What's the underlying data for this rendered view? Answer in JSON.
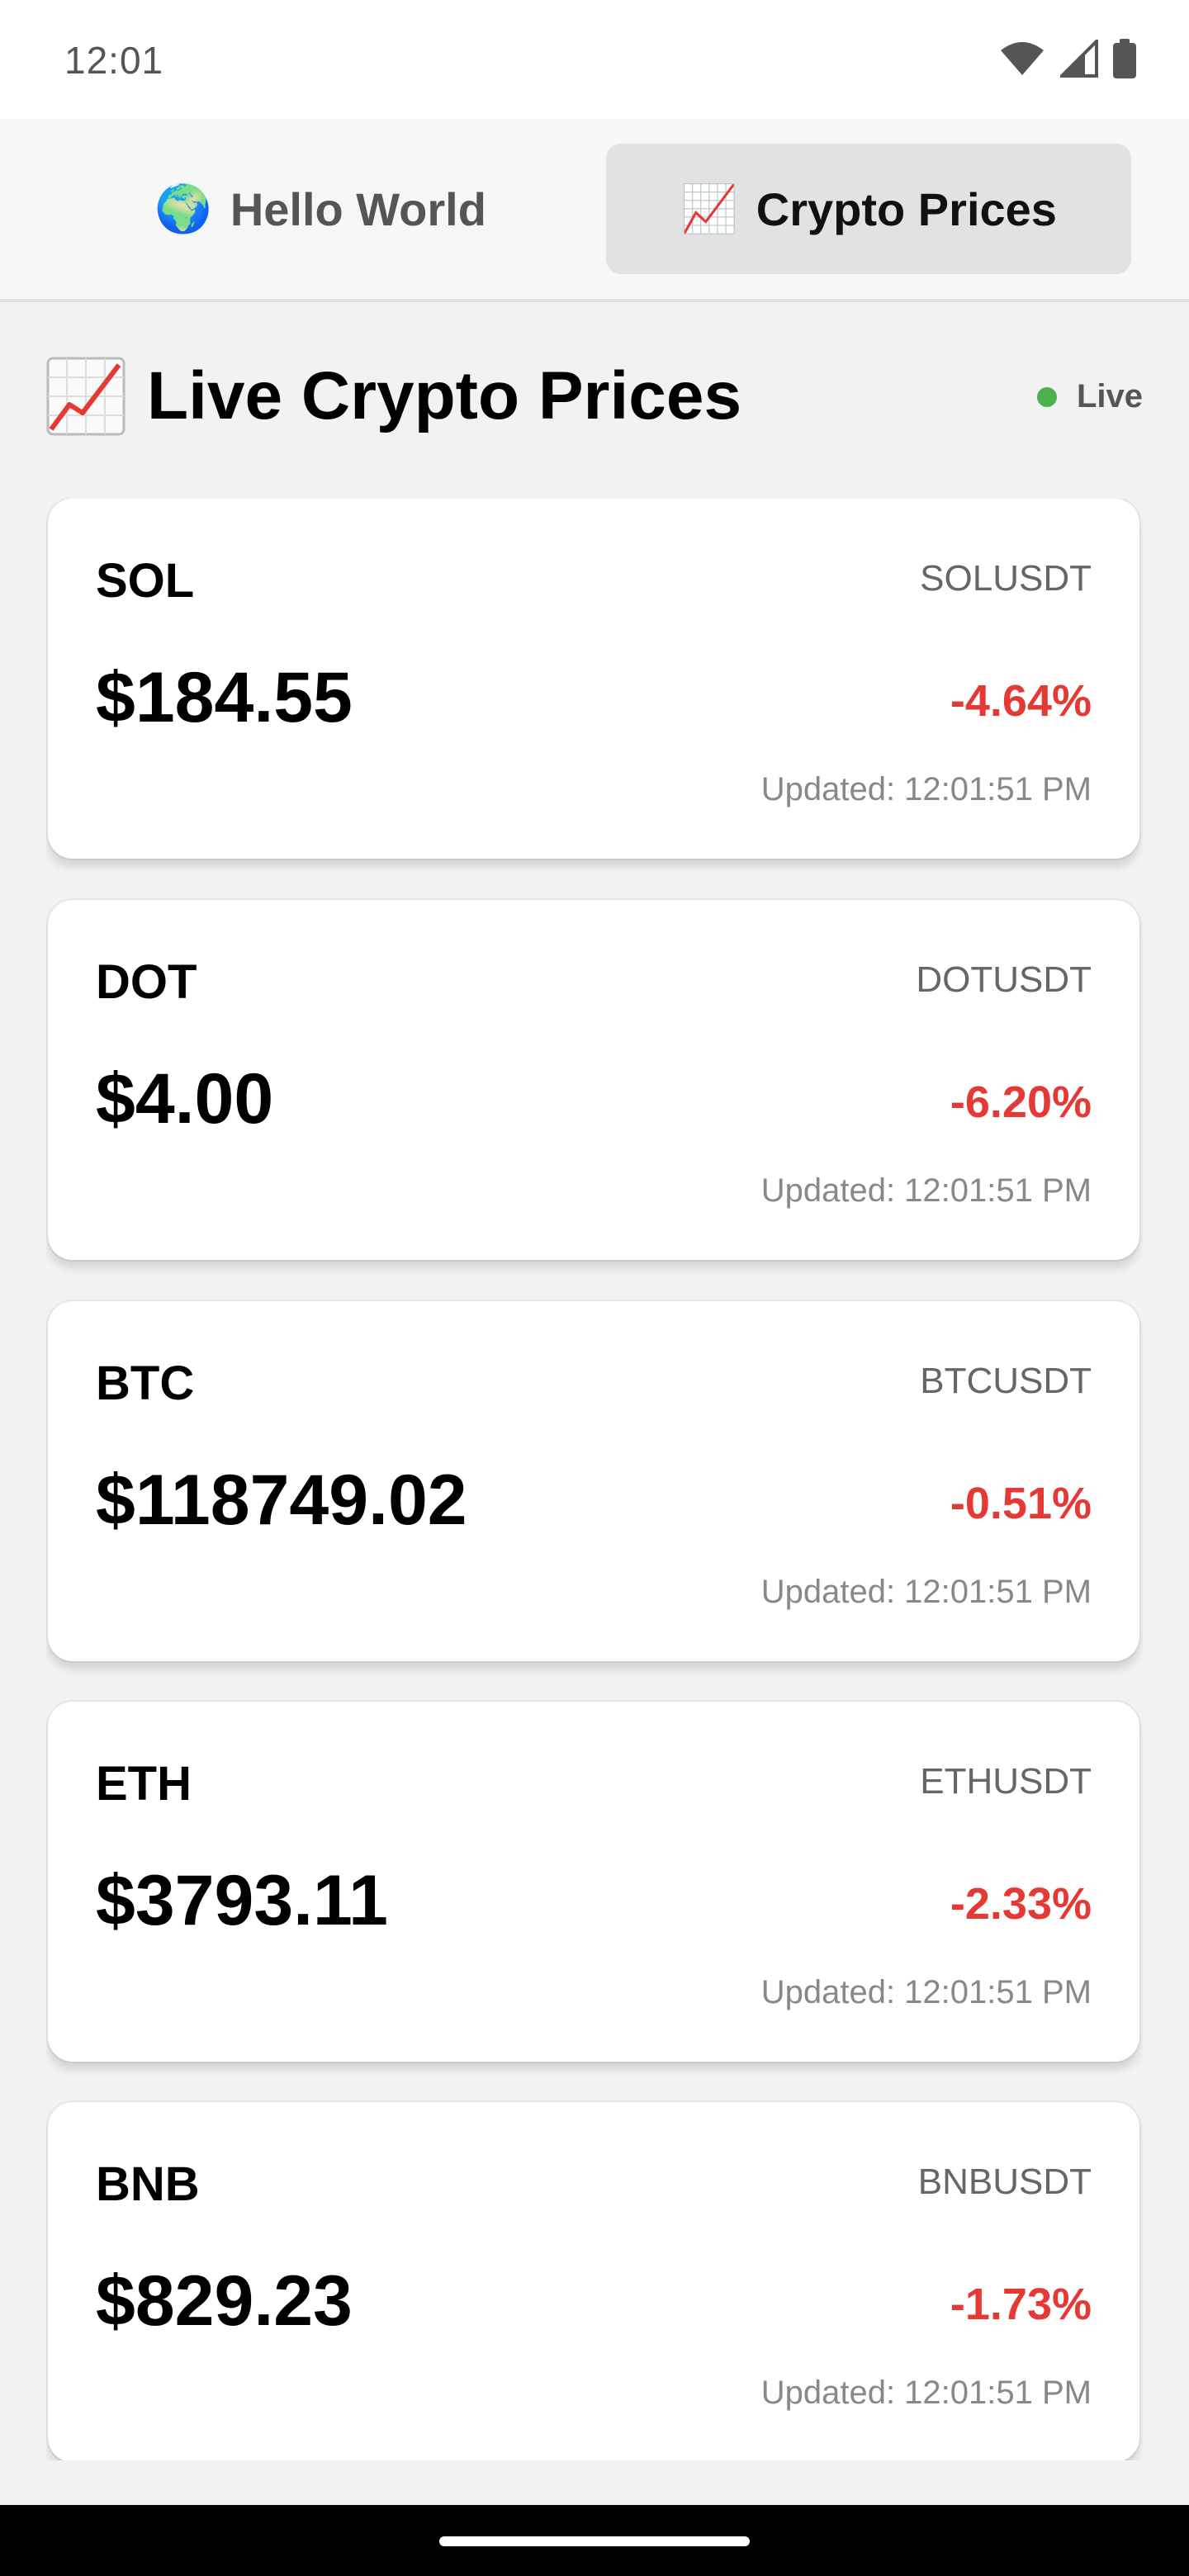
{
  "status_bar": {
    "time": "12:01",
    "icons": [
      "wifi-icon",
      "cellular-signal-icon",
      "battery-icon"
    ]
  },
  "tabs": [
    {
      "icon": "🌍",
      "label": "Hello World",
      "selected": false
    },
    {
      "icon": "📈",
      "label": "Crypto Prices",
      "selected": true
    }
  ],
  "header": {
    "title": "Live Crypto Prices",
    "title_icon": "chart-increasing-icon",
    "live_label": "Live",
    "live_color": "#4caf50"
  },
  "colors": {
    "negative_change": "#e53935",
    "active_tab_bg": "#e2e2e2"
  },
  "cards": [
    {
      "symbol": "SOL",
      "pair": "SOLUSDT",
      "price": "$184.55",
      "change": "-4.64%",
      "updated": "Updated: 12:01:51 PM"
    },
    {
      "symbol": "DOT",
      "pair": "DOTUSDT",
      "price": "$4.00",
      "change": "-6.20%",
      "updated": "Updated: 12:01:51 PM"
    },
    {
      "symbol": "BTC",
      "pair": "BTCUSDT",
      "price": "$118749.02",
      "change": "-0.51%",
      "updated": "Updated: 12:01:51 PM"
    },
    {
      "symbol": "ETH",
      "pair": "ETHUSDT",
      "price": "$3793.11",
      "change": "-2.33%",
      "updated": "Updated: 12:01:51 PM"
    },
    {
      "symbol": "BNB",
      "pair": "BNBUSDT",
      "price": "$829.23",
      "change": "-1.73%",
      "updated": "Updated: 12:01:51 PM"
    }
  ]
}
